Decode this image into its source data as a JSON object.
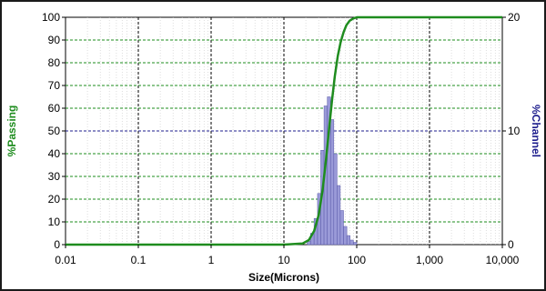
{
  "chart_data": {
    "type": "histogram+line",
    "x_scale": "log",
    "xlim": [
      0.01,
      10000
    ],
    "xlabel": "Size(Microns)",
    "x_ticks": [
      "0.01",
      "0.1",
      "1",
      "10",
      "100",
      "1,000",
      "10,000"
    ],
    "y_left": {
      "label": "%Passing",
      "label_color": "#1e8c1e",
      "lim": [
        0,
        100
      ],
      "ticks": [
        "0",
        "10",
        "20",
        "30",
        "40",
        "50",
        "60",
        "70",
        "80",
        "90",
        "100"
      ]
    },
    "y_right": {
      "label": "%Channel",
      "label_color": "#1c1c8c",
      "lim": [
        0,
        20
      ],
      "ticks": [
        "0",
        "10",
        "20"
      ]
    },
    "grid": {
      "horizontal_color": "#1e8c1e",
      "horizontal_mid_color": "#1c1c8c",
      "vertical_color": "#000000",
      "style": "dashed"
    },
    "series": [
      {
        "kind": "cumulative-line",
        "axis": "left",
        "color": "#1e8c1e",
        "x": [
          0.01,
          10,
          18,
          22,
          26,
          30,
          34,
          38,
          42,
          46,
          50,
          55,
          60,
          66,
          72,
          80,
          90,
          100,
          130,
          10000
        ],
        "y": [
          0,
          0,
          0.5,
          2,
          6,
          13,
          24,
          38,
          52,
          64,
          74,
          83,
          89,
          93.5,
          96.5,
          98.5,
          99.5,
          100,
          100,
          100
        ]
      },
      {
        "kind": "histogram",
        "axis": "right",
        "color": "#9a9ad8",
        "edge_color": "#5858a8",
        "x": [
          22,
          24.5,
          27.5,
          30.5,
          33.7,
          37.5,
          41.5,
          46,
          51,
          56.5,
          62.5,
          69.5,
          77,
          85.5,
          95
        ],
        "values": [
          0.3,
          1.0,
          2.3,
          4.5,
          8.3,
          12.2,
          13.0,
          11.0,
          8.0,
          5.2,
          3.0,
          1.6,
          0.8,
          0.4,
          0.2
        ]
      }
    ]
  }
}
